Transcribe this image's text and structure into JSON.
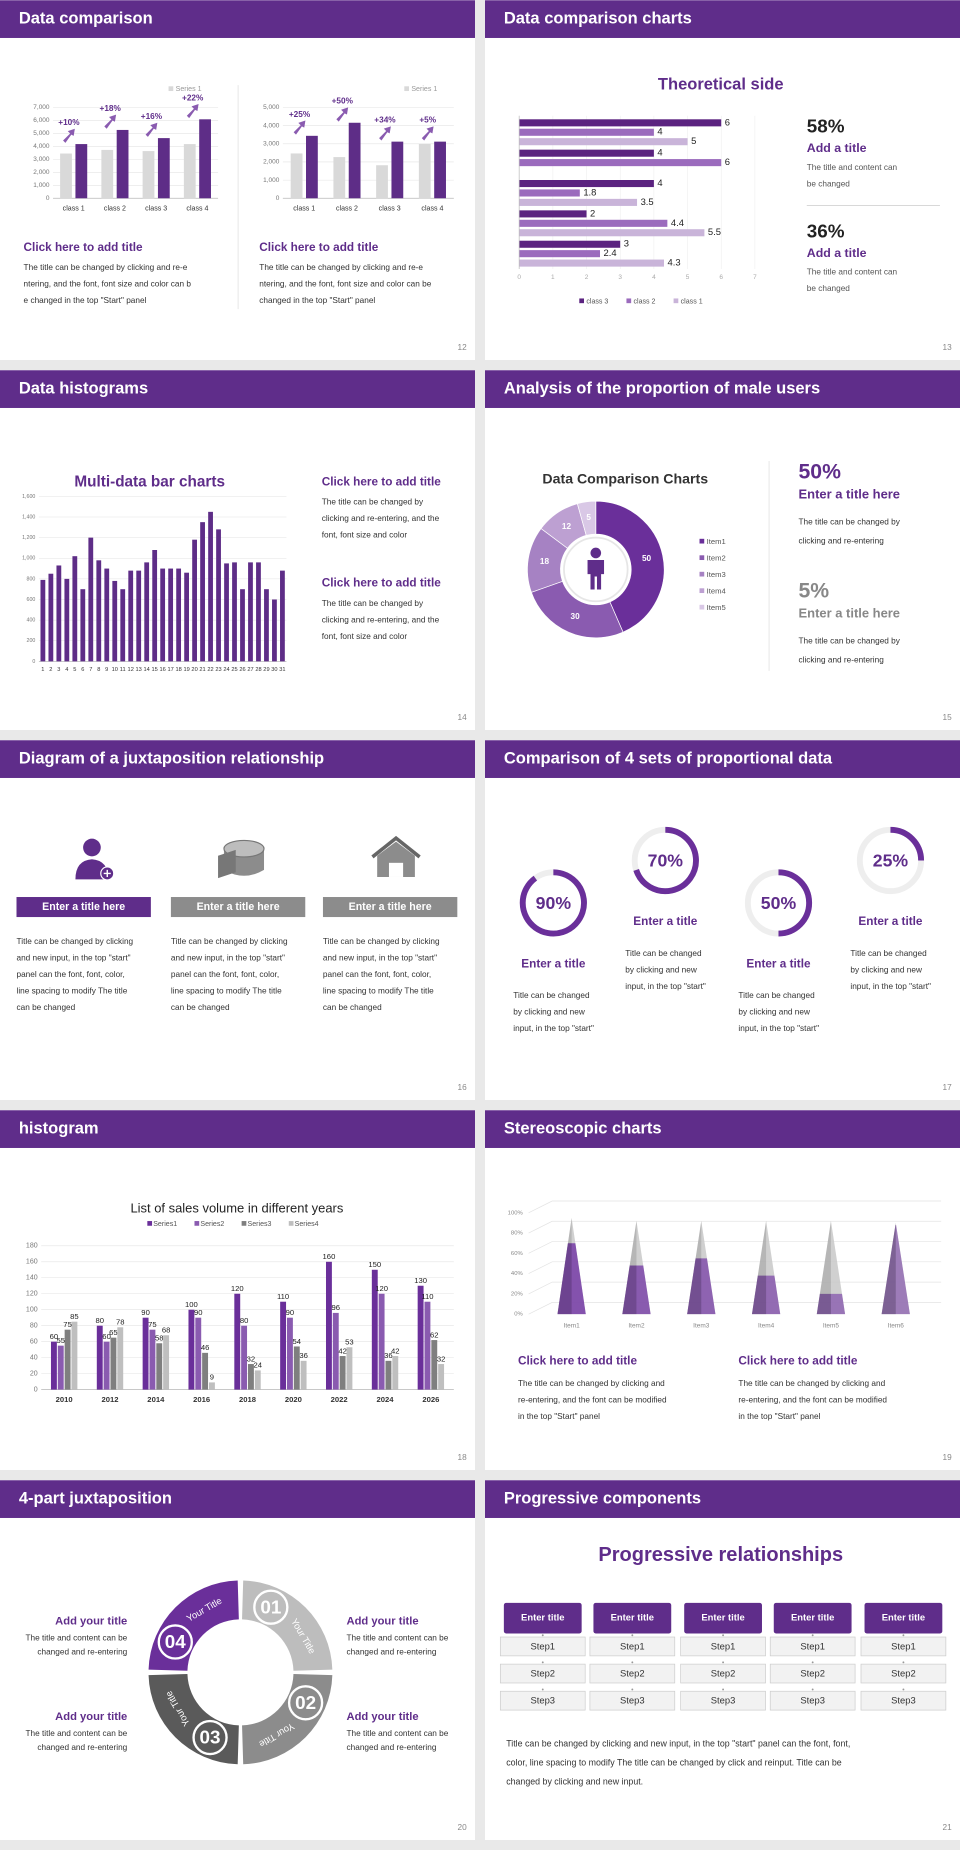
{
  "slides": [
    {
      "title": "Data comparison",
      "page": 12,
      "charts": [
        {
          "type": "bar",
          "categories": [
            "class 1",
            "class 2",
            "class 3",
            "class 4"
          ],
          "series": [
            {
              "name": "Series 1",
              "color": "#d9d9d9",
              "values": [
                3450,
                3730,
                3640,
                4180
              ]
            },
            {
              "color": "#5e2d87",
              "values": [
                4180,
                5270,
                4640,
                6090
              ]
            }
          ],
          "growth_labels": [
            "+10%",
            "+18%",
            "+16%",
            "+22%"
          ],
          "ylim": [
            0,
            7000
          ],
          "yticks": [
            0,
            {
              "value": 1000,
              "label": "1,000"
            },
            {
              "value": 2000,
              "label": "2,000"
            },
            {
              "value": 3000,
              "label": "3,000"
            },
            {
              "value": 4000,
              "label": "4,000"
            },
            {
              "value": 5000,
              "label": "5,000"
            },
            {
              "value": 6000,
              "label": "6,000"
            },
            {
              "value": 7000,
              "label": "7,000"
            }
          ]
        },
        {
          "type": "bar",
          "categories": [
            "class 1",
            "class 2",
            "class 3",
            "class 4"
          ],
          "series": [
            {
              "name": "Series 1",
              "color": "#d9d9d9",
              "values": [
                2470,
                2270,
                1820,
                2990
              ]
            },
            {
              "color": "#5e2d87",
              "values": [
                3440,
                4160,
                3120,
                3120
              ]
            }
          ],
          "growth_labels": [
            "+25%",
            "+50%",
            "+34%",
            "+5%"
          ],
          "ylim": [
            0,
            5000
          ],
          "yticks": [
            0,
            {
              "value": 1000,
              "label": "1,000"
            },
            {
              "value": 2000,
              "label": "2,000"
            },
            {
              "value": 3000,
              "label": "3,000"
            },
            {
              "value": 4000,
              "label": "4,000"
            },
            {
              "value": 5000,
              "label": "5,000"
            }
          ]
        }
      ],
      "blocks": [
        {
          "heading": "Click here to add title",
          "text": [
            "The title can be changed by clicking and re-e",
            "ntering, and the font, font size and color can b",
            "e changed in the top \"Start\" panel"
          ]
        },
        {
          "heading": "Click here to add title",
          "text": [
            "The title can be changed by clicking and re-e",
            "ntering, and the font, font size and color can be",
            "changed in the top \"Start\" panel"
          ]
        }
      ]
    },
    {
      "title": "Data comparison charts",
      "page": 13,
      "chart": {
        "type": "bar",
        "orientation": "horizontal",
        "title": "Theoretical side",
        "series": [
          {
            "name": "class 3",
            "color": "#5b2380",
            "values": [
              6,
              4,
              4,
              2,
              3
            ]
          },
          {
            "name": "class 2",
            "color": "#9b6bbd",
            "values": [
              4,
              6,
              1.8,
              4.4,
              2.4
            ]
          },
          {
            "name": "class 1",
            "color": "#c9b4d9",
            "values": [
              5,
              null,
              3.5,
              5.5,
              4.3
            ]
          }
        ],
        "xlim": [
          0,
          7
        ],
        "xticks": [
          0,
          1,
          2,
          3,
          4,
          5,
          6,
          7
        ]
      },
      "stats": [
        {
          "value": "58%",
          "heading": "Add a title",
          "text": [
            "The title and content can",
            "be changed"
          ]
        },
        {
          "value": "36%",
          "heading": "Add a title",
          "text": [
            "The title and content can",
            "be changed"
          ]
        }
      ]
    },
    {
      "title": "Data histograms",
      "page": 14,
      "chart": {
        "type": "bar",
        "title": "Multi-data bar charts",
        "categories": [
          "1",
          "2",
          "3",
          "4",
          "5",
          "6",
          "7",
          "8",
          "9",
          "10",
          "11",
          "12",
          "13",
          "14",
          "15",
          "16",
          "17",
          "18",
          "19",
          "20",
          "21",
          "22",
          "23",
          "24",
          "25",
          "26",
          "27",
          "28",
          "29",
          "30",
          "31"
        ],
        "values": [
          790,
          850,
          930,
          800,
          1020,
          700,
          1200,
          980,
          900,
          780,
          700,
          880,
          880,
          960,
          1080,
          900,
          900,
          900,
          860,
          1180,
          1350,
          1450,
          1280,
          950,
          960,
          700,
          960,
          960,
          700,
          600,
          880
        ],
        "color": "#5e2d87",
        "ylim": [
          0,
          1600
        ],
        "yticks": [
          0,
          200,
          400,
          600,
          800,
          {
            "value": 1000,
            "label": "1,000"
          },
          {
            "value": 1200,
            "label": "1,200"
          },
          {
            "value": 1400,
            "label": "1,400"
          },
          {
            "value": 1600,
            "label": "1,600"
          }
        ]
      },
      "blocks": [
        {
          "heading": "Click here to add title",
          "text": [
            "The title can be changed by",
            "clicking and re-entering, and the",
            "font, font size and color"
          ]
        },
        {
          "heading": "Click here to add title",
          "text": [
            "The title can be changed by",
            "clicking and re-entering, and the",
            "font, font size and color"
          ]
        }
      ]
    },
    {
      "title": "Analysis of the proportion of male users",
      "page": 15,
      "chart": {
        "type": "pie",
        "title": "Data Comparison Charts",
        "categories": [
          "Item1",
          "Item2",
          "Item3",
          "Item4",
          "Item5"
        ],
        "values": [
          50,
          30,
          18,
          12,
          5
        ],
        "colors": [
          "#6a2f9a",
          "#8a5bb0",
          "#a682c3",
          "#bda0d2",
          "#d9c8e6"
        ]
      },
      "stats": [
        {
          "value": "50%",
          "heading": "Enter a title here",
          "text": [
            "The title can be changed by",
            "clicking and re-entering"
          ]
        },
        {
          "value": "5%",
          "heading": "Enter a title here",
          "text": [
            "The title can be changed by",
            "clicking and re-entering"
          ]
        }
      ]
    },
    {
      "title": "Diagram of a juxtaposition relationship",
      "page": 16,
      "items": [
        {
          "heading": "Enter a title here",
          "text": [
            "Title can be changed by clicking",
            "and new input, in the top \"start\"",
            "panel can the font, font, color,",
            "line spacing to modify The title",
            "can be changed"
          ]
        },
        {
          "heading": "Enter a title here",
          "text": [
            "Title can be changed by clicking",
            "and new input, in the top \"start\"",
            "panel can the font, font, color,",
            "line spacing to modify The title",
            "can be changed"
          ]
        },
        {
          "heading": "Enter a title here",
          "text": [
            "Title can be changed by clicking",
            "and new input, in the top \"start\"",
            "panel can the font, font, color,",
            "line spacing to modify The title",
            "can be changed"
          ]
        }
      ]
    },
    {
      "title": "Comparison of 4 sets of proportional data",
      "page": 17,
      "chart": {
        "type": "ring",
        "values": [
          90,
          70,
          50,
          25
        ],
        "value_labels": [
          "90%",
          "70%",
          "50%",
          "25%"
        ],
        "color": "#6a2f9a"
      },
      "items": [
        {
          "heading": "Enter a title",
          "text": [
            "Title can be changed",
            "by clicking and new",
            "input, in the top \"start\""
          ]
        },
        {
          "heading": "Enter a title",
          "text": [
            "Title can be changed",
            "by clicking and new",
            "input, in the top \"start\""
          ]
        },
        {
          "heading": "Enter a title",
          "text": [
            "Title can be changed",
            "by clicking and new",
            "input, in the top \"start\""
          ]
        },
        {
          "heading": "Enter a title",
          "text": [
            "Title can be changed",
            "by clicking and new",
            "input, in the top \"start\""
          ]
        }
      ]
    },
    {
      "title": "histogram",
      "page": 18,
      "chart": {
        "type": "bar",
        "title": "List of sales volume in different years",
        "categories": [
          "2010",
          "2012",
          "2014",
          "2016",
          "2018",
          "2020",
          "2022",
          "2024",
          "2026"
        ],
        "series": [
          {
            "name": "Series1",
            "color": "#6a2f9a",
            "values": [
              60,
              80,
              90,
              100,
              120,
              110,
              160,
              150,
              130
            ]
          },
          {
            "name": "Series2",
            "color": "#8a5bb0",
            "values": [
              55,
              60,
              75,
              90,
              80,
              90,
              96,
              120,
              110
            ]
          },
          {
            "name": "Series3",
            "color": "#7f7f7f",
            "values": [
              75,
              65,
              58,
              46,
              32,
              54,
              42,
              36,
              62
            ]
          },
          {
            "name": "Series4",
            "color": "#bfbfbf",
            "values": [
              85,
              78,
              68,
              9,
              24,
              36,
              53,
              42,
              32
            ]
          }
        ],
        "ylim": [
          0,
          180
        ],
        "yticks": [
          0,
          20,
          40,
          60,
          80,
          100,
          120,
          140,
          160,
          180
        ]
      }
    },
    {
      "title": "Stereoscopic charts",
      "page": 19,
      "chart": {
        "type": "cone",
        "categories": [
          "Item1",
          "Item2",
          "Item3",
          "Item4",
          "Item5",
          "Item6"
        ],
        "series": [
          {
            "color": "#c8c8c8",
            "values": [
              95,
              92,
              92,
              92,
              92,
              90
            ]
          },
          {
            "color": "#7b44a8",
            "values": [
              70,
              48,
              55,
              38,
              20,
              88
            ]
          }
        ],
        "ylim": [
          0,
          100
        ],
        "yticks": [
          {
            "value": 0,
            "label": "0%"
          },
          {
            "value": 20,
            "label": "20%"
          },
          {
            "value": 40,
            "label": "40%"
          },
          {
            "value": 60,
            "label": "60%"
          },
          {
            "value": 80,
            "label": "80%"
          },
          {
            "value": 100,
            "label": "100%"
          }
        ]
      },
      "blocks": [
        {
          "heading": "Click here to add title",
          "text": [
            "The title can be changed by clicking and",
            "re-entering, and the font can be modified",
            "in the top \"Start\" panel"
          ]
        },
        {
          "heading": "Click here to add title",
          "text": [
            "The title can be changed by clicking and",
            "re-entering, and the font can be modified",
            "in the top \"Start\" panel"
          ]
        }
      ]
    },
    {
      "title": "4-part juxtaposition",
      "page": 20,
      "segments": [
        {
          "number": "01",
          "label": "Your Title"
        },
        {
          "number": "02",
          "label": "Your Title"
        },
        {
          "number": "03",
          "label": "Your Title"
        },
        {
          "number": "04",
          "label": "Your Title"
        }
      ],
      "items": [
        {
          "heading": "Add your title",
          "text": [
            "The title and content can be",
            "changed and re-entering"
          ]
        },
        {
          "heading": "Add your title",
          "text": [
            "The title and content can be",
            "changed and re-entering"
          ]
        },
        {
          "heading": "Add your title",
          "text": [
            "The title and content can be",
            "changed and re-entering"
          ]
        },
        {
          "heading": "Add your title",
          "text": [
            "The title and content can be",
            "changed and re-entering"
          ]
        }
      ]
    },
    {
      "title": "Progressive components",
      "page": 21,
      "heading": "Progressive relationships",
      "columns": [
        {
          "header": "Enter title",
          "steps": [
            "Step1",
            "Step2",
            "Step3"
          ]
        },
        {
          "header": "Enter title",
          "steps": [
            "Step1",
            "Step2",
            "Step3"
          ]
        },
        {
          "header": "Enter title",
          "steps": [
            "Step1",
            "Step2",
            "Step3"
          ]
        },
        {
          "header": "Enter title",
          "steps": [
            "Step1",
            "Step2",
            "Step3"
          ]
        },
        {
          "header": "Enter title",
          "steps": [
            "Step1",
            "Step2",
            "Step3"
          ]
        }
      ],
      "text": [
        "Title can be changed by clicking and new input, in the top \"start\" panel can the font, font,",
        "color, line spacing to modify The title can be changed by click and reinput. Title can be",
        "changed by clicking and new input."
      ]
    }
  ]
}
